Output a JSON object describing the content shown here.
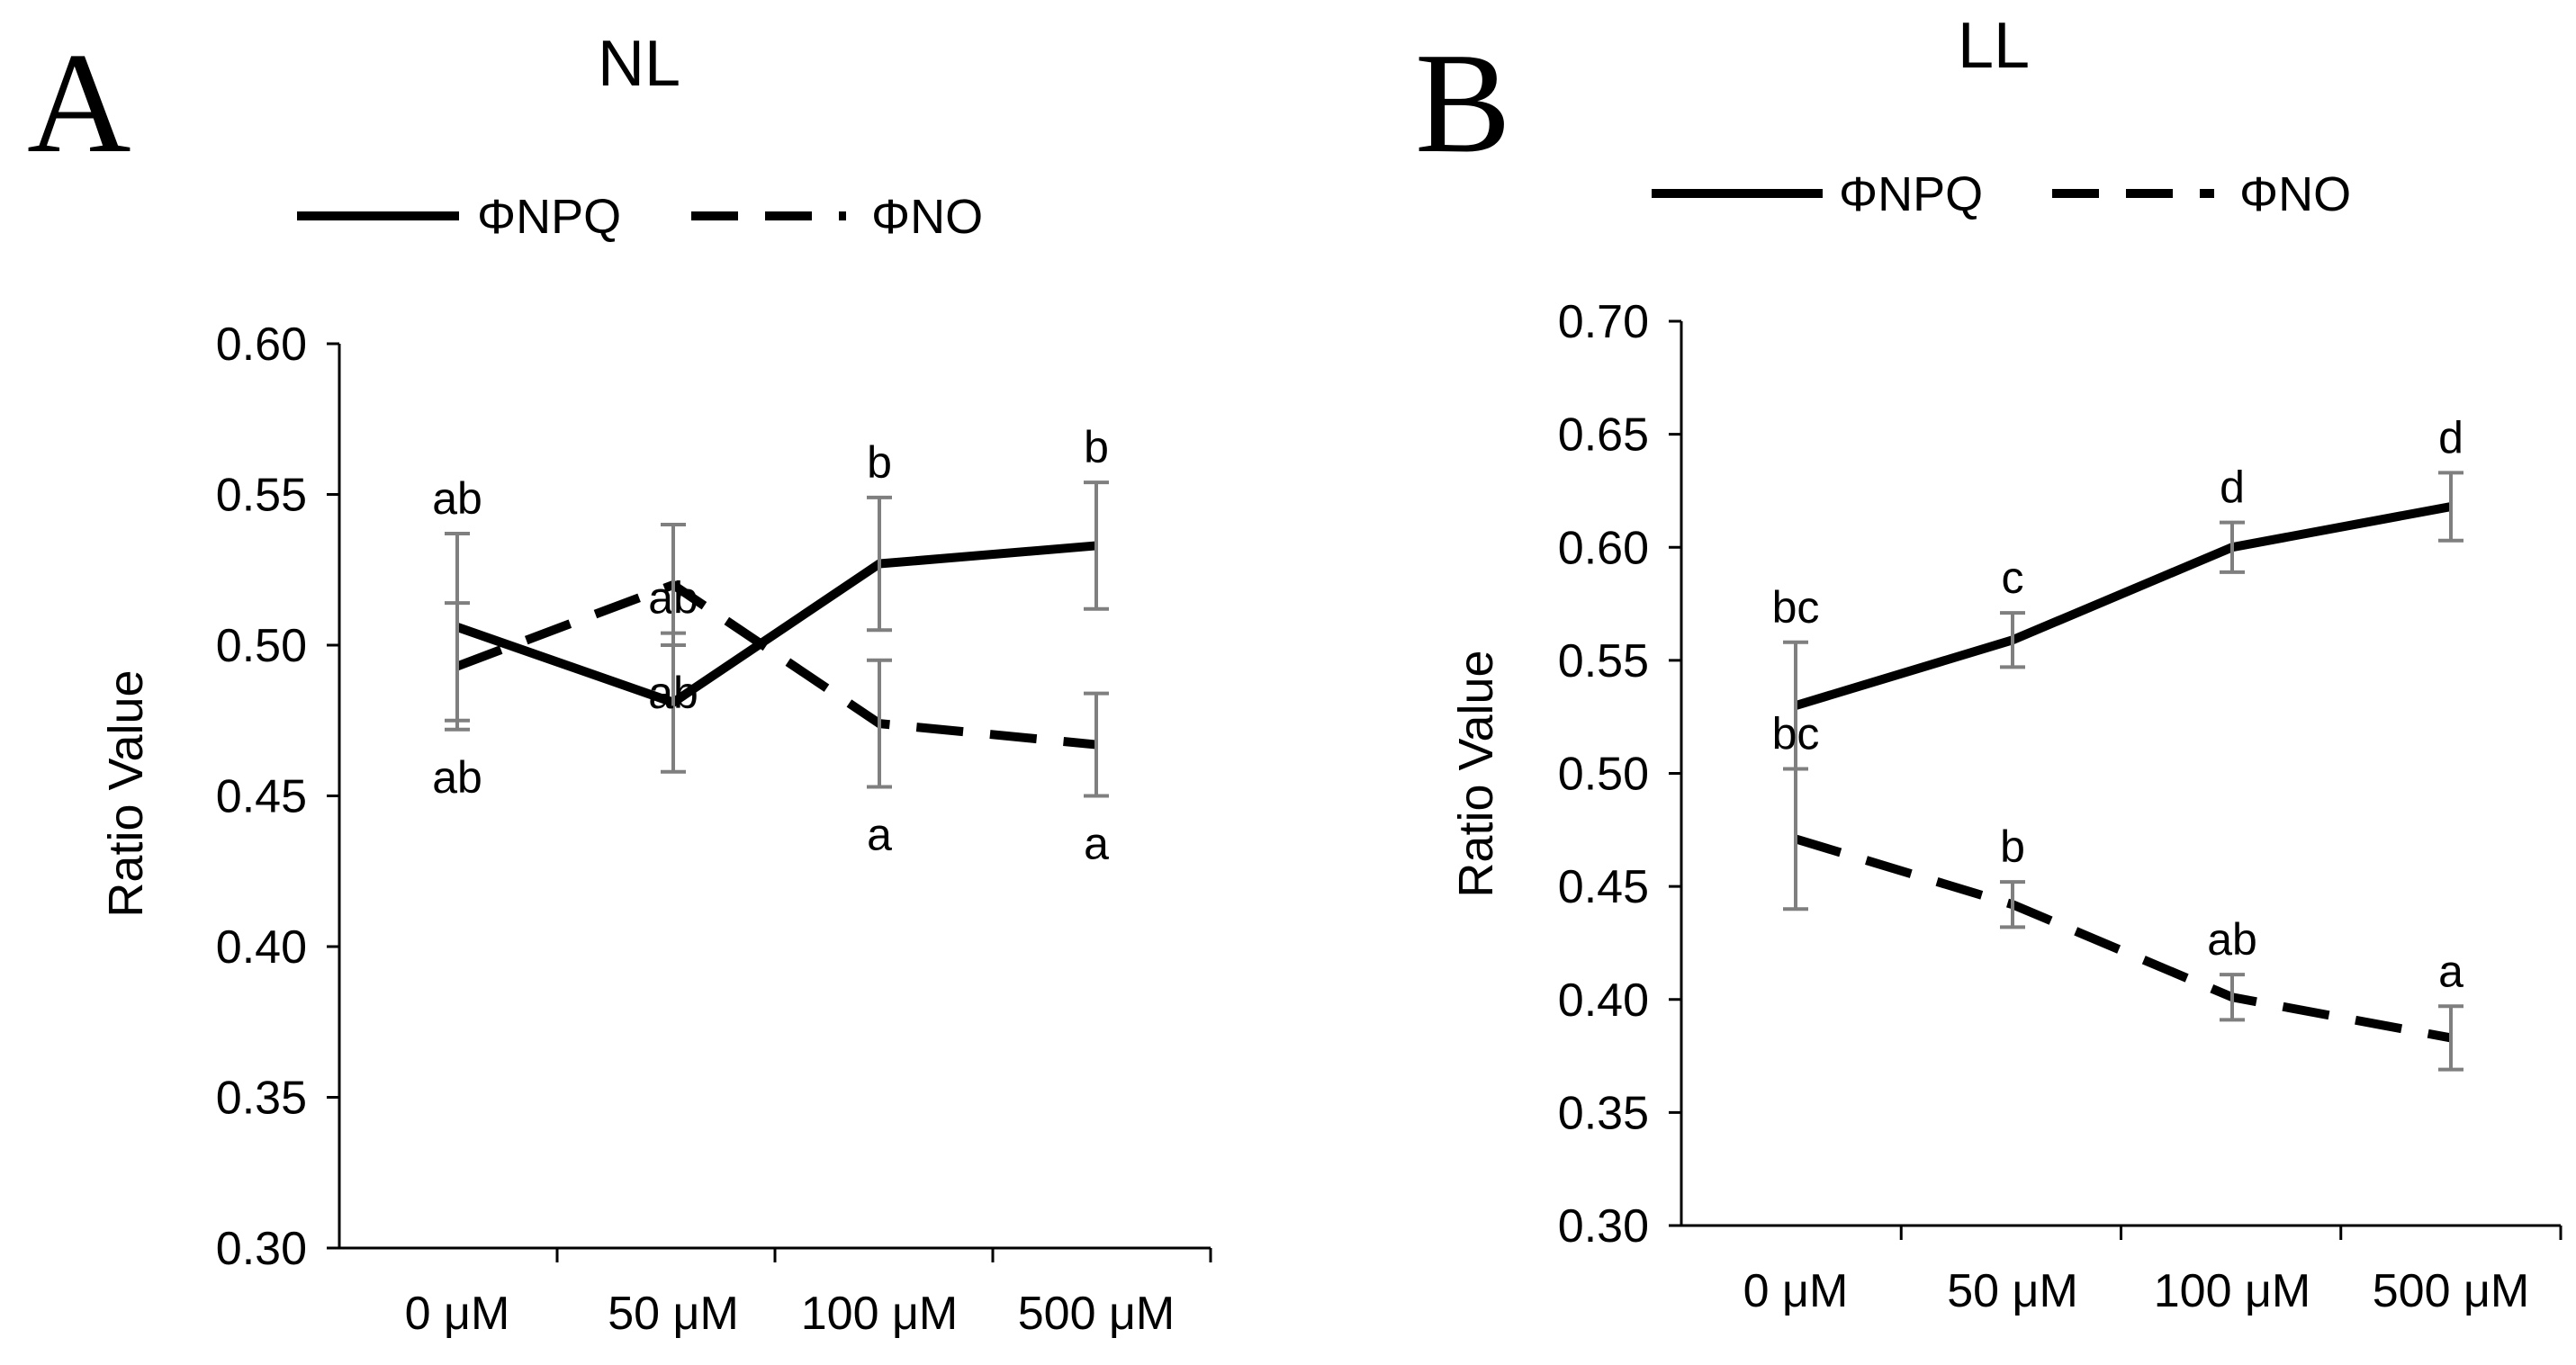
{
  "chart_data": [
    {
      "type": "line",
      "panel_letter": "A",
      "title": "NL",
      "xlabel": "",
      "ylabel": "Ratio Value",
      "ylim": [
        0.3,
        0.6
      ],
      "ytick_step": 0.05,
      "ytick_labels": [
        "0.30",
        "0.35",
        "0.40",
        "0.45",
        "0.50",
        "0.55",
        "0.60"
      ],
      "categories": [
        "0 μM",
        "50 μM",
        "100 μM",
        "500 μM"
      ],
      "legend": {
        "position": "top",
        "entries": [
          "ΦNPQ",
          "ΦNO"
        ]
      },
      "series": [
        {
          "name": "ΦNPQ",
          "style": "solid",
          "values": [
            0.506,
            0.481,
            0.527,
            0.533
          ],
          "error": [
            0.031,
            0.023,
            0.022,
            0.021
          ],
          "sig_labels": [
            "ab",
            "ab",
            "b",
            "b"
          ],
          "sig_label_pos": "above"
        },
        {
          "name": "ΦNO",
          "style": "dashed",
          "values": [
            0.493,
            0.52,
            0.474,
            0.467
          ],
          "error": [
            0.021,
            0.02,
            0.021,
            0.017
          ],
          "sig_labels": [
            "ab",
            "ab",
            "a",
            "a"
          ],
          "sig_label_pos": "below"
        }
      ]
    },
    {
      "type": "line",
      "panel_letter": "B",
      "title": "LL",
      "xlabel": "",
      "ylabel": "Ratio Value",
      "ylim": [
        0.3,
        0.7
      ],
      "ytick_step": 0.05,
      "ytick_labels": [
        "0.30",
        "0.35",
        "0.40",
        "0.45",
        "0.50",
        "0.55",
        "0.60",
        "0.65",
        "0.70"
      ],
      "categories": [
        "0 μM",
        "50 μM",
        "100 μM",
        "500 μM"
      ],
      "legend": {
        "position": "top",
        "entries": [
          "ΦNPQ",
          "ΦNO"
        ]
      },
      "series": [
        {
          "name": "ΦNPQ",
          "style": "solid",
          "values": [
            0.53,
            0.559,
            0.6,
            0.618
          ],
          "error": [
            0.028,
            0.012,
            0.011,
            0.015
          ],
          "sig_labels": [
            "bc",
            "c",
            "d",
            "d"
          ],
          "sig_label_pos": "above"
        },
        {
          "name": "ΦNO",
          "style": "dashed",
          "values": [
            0.471,
            0.442,
            0.401,
            0.383
          ],
          "error": [
            0.031,
            0.01,
            0.01,
            0.014
          ],
          "sig_labels": [
            "bc",
            "b",
            "ab",
            "a"
          ],
          "sig_label_pos": "above"
        }
      ]
    }
  ]
}
